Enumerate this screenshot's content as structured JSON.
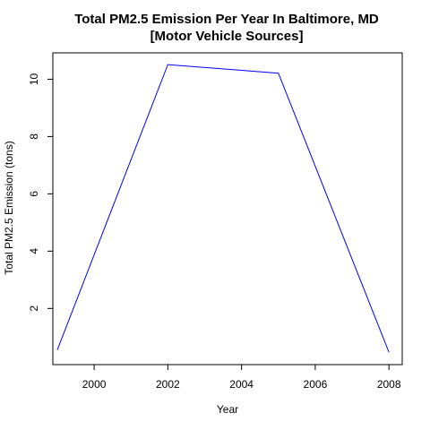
{
  "chart_data": {
    "type": "line",
    "title_line1": "Total PM2.5 Emission Per Year In Baltimore, MD",
    "title_line2": "[Motor Vehicle Sources]",
    "xlabel": "Year",
    "ylabel": "Total PM2.5 Emission (tons)",
    "x": [
      1999,
      2002,
      2005,
      2008
    ],
    "y": [
      0.55,
      10.51,
      10.21,
      0.47
    ],
    "xlim": [
      1998.88,
      2008.36
    ],
    "ylim": [
      0.04,
      10.92
    ],
    "xticks": [
      2000,
      2002,
      2004,
      2006,
      2008
    ],
    "yticks": [
      2,
      4,
      6,
      8,
      10
    ],
    "line_color": "#0000ff",
    "grid": false
  }
}
